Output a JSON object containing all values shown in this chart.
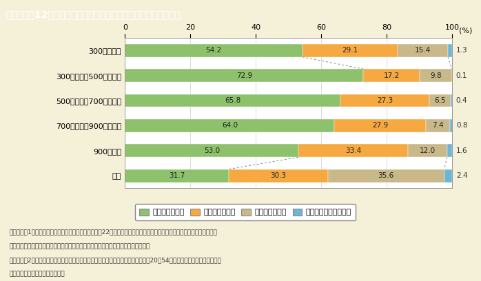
{
  "title": "第１－２－12図　夫の稼働所得階級（年収）別妻の年金加入状況",
  "title_bg_color": "#8B6835",
  "title_text_color": "#ffffff",
  "background_color": "#F5F0D8",
  "plot_bg_color": "#ffffff",
  "categories": [
    "全体",
    "900万円超",
    "700万円超～900万円以下",
    "500万円超～700万円以下",
    "300万円超～500万円以下",
    "300万円以下"
  ],
  "s3": [
    54.2,
    72.9,
    65.8,
    64.0,
    53.0,
    31.7
  ],
  "s2": [
    29.1,
    17.2,
    27.3,
    27.9,
    33.4,
    30.3
  ],
  "s1": [
    15.4,
    9.8,
    6.5,
    7.4,
    12.0,
    35.6
  ],
  "no": [
    1.3,
    0.1,
    0.4,
    0.8,
    1.6,
    2.4
  ],
  "color_s3": "#8DC16B",
  "color_s2": "#F5A940",
  "color_s1": "#C8B88A",
  "color_no": "#6EB5D4",
  "legend_labels": [
    "第３号被保険者",
    "第２号被保険者",
    "第１号被保険者",
    "加入していない・不詳"
  ],
  "xticks": [
    0,
    20,
    40,
    60,
    80,
    100
  ],
  "note_lines": [
    "（備考）　1．厚生労働省「国民生活基礎調査」（平成22年）より作成。男女共同参画会議基本問題・影響調査専門調査会",
    "　　　　　　女性と経済ワーキング・グループ（安部由起子委員）による特別集計。",
    "　　　　　2．夫婦関係であることをデータから確認できた場合を集計。妻の年齢は20～54歳。「全体」は夫の稼働所得が",
    "　　　　　　不明の場合を含む。"
  ]
}
